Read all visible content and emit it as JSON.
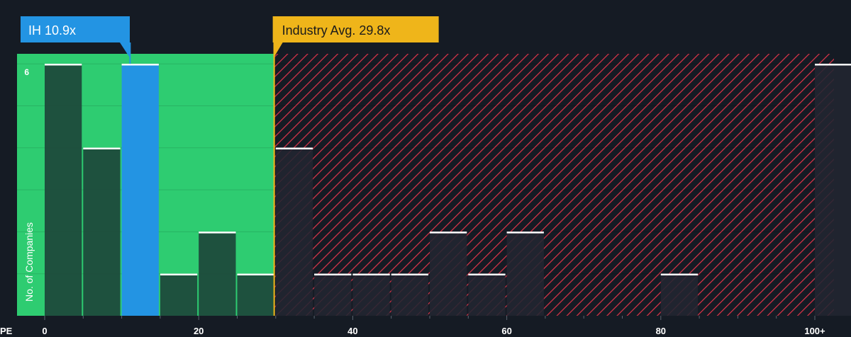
{
  "chart_data": {
    "type": "bar",
    "title": "",
    "xlabel": "PE",
    "ylabel": "No. of Companies",
    "xlim": [
      0,
      101
    ],
    "ylim": [
      0,
      6.2
    ],
    "x_ticks": [
      {
        "value": 0,
        "label": "0"
      },
      {
        "value": 20,
        "label": "20"
      },
      {
        "value": 40,
        "label": "40"
      },
      {
        "value": 60,
        "label": "60"
      },
      {
        "value": 80,
        "label": "80"
      },
      {
        "value": 100,
        "label": "100+"
      }
    ],
    "y_ticks": [
      {
        "value": 6,
        "label": "6"
      }
    ],
    "bin_width": 5,
    "bins": [
      {
        "x0": 0,
        "x1": 5,
        "value": 6
      },
      {
        "x0": 5,
        "x1": 10,
        "value": 4
      },
      {
        "x0": 10,
        "x1": 15,
        "value": 6,
        "highlight": true
      },
      {
        "x0": 15,
        "x1": 20,
        "value": 1
      },
      {
        "x0": 20,
        "x1": 25,
        "value": 2
      },
      {
        "x0": 25,
        "x1": 30,
        "value": 1
      },
      {
        "x0": 30,
        "x1": 35,
        "value": 4
      },
      {
        "x0": 35,
        "x1": 40,
        "value": 1
      },
      {
        "x0": 40,
        "x1": 45,
        "value": 1
      },
      {
        "x0": 45,
        "x1": 50,
        "value": 1
      },
      {
        "x0": 50,
        "x1": 55,
        "value": 2
      },
      {
        "x0": 55,
        "x1": 60,
        "value": 1
      },
      {
        "x0": 60,
        "x1": 65,
        "value": 2
      },
      {
        "x0": 65,
        "x1": 70,
        "value": 0
      },
      {
        "x0": 70,
        "x1": 75,
        "value": 0
      },
      {
        "x0": 75,
        "x1": 80,
        "value": 0
      },
      {
        "x0": 80,
        "x1": 85,
        "value": 1
      },
      {
        "x0": 85,
        "x1": 90,
        "value": 0
      },
      {
        "x0": 90,
        "x1": 95,
        "value": 0
      },
      {
        "x0": 95,
        "x1": 100,
        "value": 0
      },
      {
        "x0": 100,
        "x1": 105,
        "value": 6
      }
    ],
    "company": {
      "label": "IH 10.9x",
      "value": 10.9
    },
    "industry_avg": {
      "label": "Industry Avg. 29.8x",
      "value": 29.8
    },
    "colors": {
      "background": "#151b24",
      "below_avg_region": "#2ecc71",
      "above_avg_hatch": "#e0344a",
      "bar_in_green": "#1e4a3b",
      "bar_in_red": "#222631",
      "highlight_bar": "#2394e3",
      "bar_cap": "#ffffff",
      "company_callout": "#2394e3",
      "industry_callout": "#efb51a"
    }
  }
}
